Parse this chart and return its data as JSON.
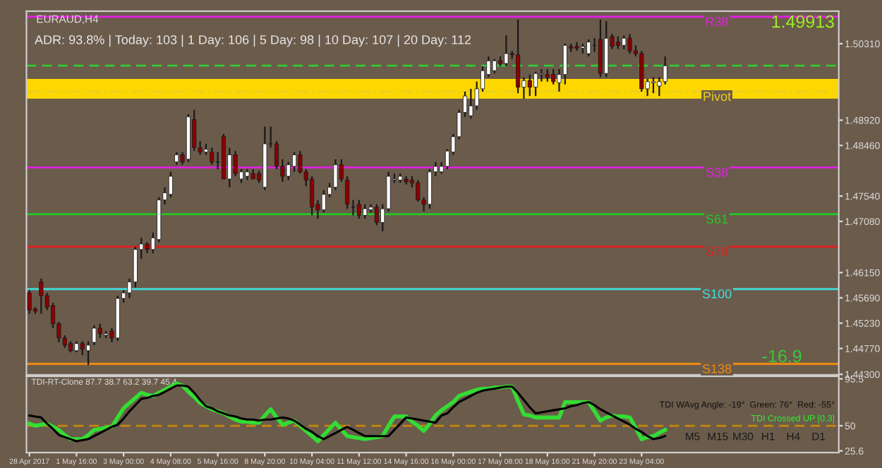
{
  "chart_data": [
    {
      "type": "candlestick",
      "title": "EURAUD,H4",
      "categories": [
        null,
        null,
        null,
        null,
        null,
        null,
        null,
        null,
        null,
        null,
        null,
        null,
        null,
        null,
        null,
        null,
        null,
        null,
        null,
        null,
        null,
        null,
        null,
        null,
        null,
        null,
        null,
        null,
        null,
        null,
        null,
        null,
        null,
        null,
        null,
        null,
        null,
        null,
        null,
        null,
        null,
        null,
        null,
        null,
        null,
        null,
        null,
        null,
        null,
        null,
        null,
        null,
        null,
        null,
        null,
        null,
        null,
        null,
        null,
        null,
        null,
        null,
        null,
        null,
        null,
        null,
        null,
        null,
        null,
        null,
        null,
        null,
        null,
        null,
        null,
        null,
        null,
        null,
        null,
        null,
        null,
        null,
        null,
        null,
        null,
        null,
        null,
        null,
        null,
        null,
        null,
        null,
        null,
        null,
        null,
        null,
        null,
        null,
        null,
        null,
        null,
        null,
        null,
        null,
        null,
        null,
        null,
        null,
        null,
        null,
        null,
        null,
        null,
        null,
        null,
        null,
        null,
        null,
        null,
        null,
        null,
        null,
        null,
        null,
        null,
        null,
        null,
        null,
        null,
        null,
        null,
        null,
        null,
        null,
        null,
        null,
        null,
        null
      ],
      "ohlc": [
        [
          1.4578,
          1.4583,
          1.454,
          1.4547
        ],
        [
          1.4549,
          1.4552,
          1.454,
          1.4545
        ],
        [
          1.4598,
          1.4604,
          1.454,
          1.4573
        ],
        [
          1.4573,
          1.4578,
          1.4547,
          1.4552
        ],
        [
          1.4555,
          1.456,
          1.4514,
          1.4522
        ],
        [
          1.4522,
          1.4525,
          1.4488,
          1.4496
        ],
        [
          1.4496,
          1.4501,
          1.4478,
          1.4483
        ],
        [
          1.4486,
          1.449,
          1.447,
          1.4473
        ],
        [
          1.4473,
          1.449,
          1.447,
          1.4486
        ],
        [
          1.4486,
          1.449,
          1.4465,
          1.4476
        ],
        [
          1.4473,
          1.449,
          1.4447,
          1.4483
        ],
        [
          1.4488,
          1.4519,
          1.4483,
          1.4514
        ],
        [
          1.4514,
          1.4522,
          1.4496,
          1.4504
        ],
        [
          1.4501,
          1.4509,
          1.4496,
          1.4504
        ],
        [
          1.4509,
          1.4514,
          1.4488,
          1.4496
        ],
        [
          1.4496,
          1.4573,
          1.4491,
          1.4568
        ],
        [
          1.4568,
          1.4583,
          1.456,
          1.4578
        ],
        [
          1.4578,
          1.4604,
          1.4568,
          1.4598
        ],
        [
          1.4598,
          1.4662,
          1.4588,
          1.4657
        ],
        [
          1.4657,
          1.4678,
          1.464,
          1.4667
        ],
        [
          1.4667,
          1.467,
          1.465,
          1.4657
        ],
        [
          1.4657,
          1.4688,
          1.465,
          1.4678
        ],
        [
          1.4675,
          1.4752,
          1.467,
          1.4747
        ],
        [
          1.4747,
          1.477,
          1.4739,
          1.476
        ],
        [
          1.4757,
          1.4798,
          1.4752,
          1.479
        ],
        [
          1.4816,
          1.4834,
          1.4811,
          1.4829
        ],
        [
          1.4829,
          1.4834,
          1.4811,
          1.4816
        ],
        [
          1.4821,
          1.4903,
          1.4816,
          1.4898
        ],
        [
          1.4893,
          1.4911,
          1.4836,
          1.4842
        ],
        [
          1.4842,
          1.4854,
          1.4829,
          1.4834
        ],
        [
          1.4834,
          1.4849,
          1.4829,
          1.4839
        ],
        [
          1.4834,
          1.4842,
          1.4811,
          1.4816
        ],
        [
          1.4816,
          1.4834,
          1.4803,
          1.4816
        ],
        [
          1.4862,
          1.4867,
          1.4785,
          1.4785
        ],
        [
          1.4785,
          1.4842,
          1.477,
          1.4829
        ],
        [
          1.4829,
          1.4836,
          1.479,
          1.4795
        ],
        [
          1.4785,
          1.4803,
          1.4778,
          1.4798
        ],
        [
          1.479,
          1.4803,
          1.4783,
          1.4798
        ],
        [
          1.4795,
          1.4803,
          1.4785,
          1.4785
        ],
        [
          1.4795,
          1.48,
          1.4778,
          1.4783
        ],
        [
          1.477,
          1.488,
          1.4765,
          1.4849
        ],
        [
          1.4849,
          1.488,
          1.4842,
          1.4849
        ],
        [
          1.4849,
          1.4854,
          1.4803,
          1.4808
        ],
        [
          1.4808,
          1.4821,
          1.478,
          1.479
        ],
        [
          1.479,
          1.4816,
          1.4783,
          1.4811
        ],
        [
          1.4808,
          1.4834,
          1.4798,
          1.4829
        ],
        [
          1.4829,
          1.4836,
          1.4795,
          1.4798
        ],
        [
          1.4798,
          1.4803,
          1.4772,
          1.4783
        ],
        [
          1.4785,
          1.479,
          1.4719,
          1.4734
        ],
        [
          1.4739,
          1.4747,
          1.4713,
          1.4729
        ],
        [
          1.4729,
          1.4765,
          1.4724,
          1.4757
        ],
        [
          1.4757,
          1.4778,
          1.4752,
          1.477
        ],
        [
          1.477,
          1.4821,
          1.4765,
          1.4811
        ],
        [
          1.4811,
          1.4821,
          1.478,
          1.4785
        ],
        [
          1.4783,
          1.479,
          1.4731,
          1.4739
        ],
        [
          1.4734,
          1.4747,
          1.4719,
          1.4734
        ],
        [
          1.4739,
          1.4747,
          1.4713,
          1.4719
        ],
        [
          1.4719,
          1.4739,
          1.4713,
          1.4731
        ],
        [
          1.4729,
          1.4739,
          1.4724,
          1.4734
        ],
        [
          1.4734,
          1.4739,
          1.4701,
          1.4706
        ],
        [
          1.4706,
          1.4739,
          1.469,
          1.4731
        ],
        [
          1.4731,
          1.4798,
          1.4726,
          1.479
        ],
        [
          1.4783,
          1.4795,
          1.4778,
          1.4785
        ],
        [
          1.4783,
          1.4795,
          1.4778,
          1.479
        ],
        [
          1.4785,
          1.479,
          1.4775,
          1.478
        ],
        [
          1.4783,
          1.479,
          1.477,
          1.4778
        ],
        [
          1.4778,
          1.4783,
          1.4744,
          1.4747
        ],
        [
          1.4747,
          1.4752,
          1.4726,
          1.4739
        ],
        [
          1.4739,
          1.4803,
          1.4731,
          1.4798
        ],
        [
          1.4798,
          1.4816,
          1.479,
          1.4808
        ],
        [
          1.4798,
          1.4816,
          1.4795,
          1.4808
        ],
        [
          1.4808,
          1.4839,
          1.4803,
          1.4836
        ],
        [
          1.4834,
          1.4867,
          1.4829,
          1.4862
        ],
        [
          1.4862,
          1.4911,
          1.4857,
          1.4906
        ],
        [
          1.4906,
          1.4944,
          1.4898,
          1.4936
        ],
        [
          1.49,
          1.4949,
          1.4895,
          1.4918
        ],
        [
          1.4918,
          1.4962,
          1.4911,
          1.4949
        ],
        [
          1.4949,
          1.499,
          1.4944,
          1.4982
        ],
        [
          1.4975,
          1.5008,
          1.497,
          1.5
        ],
        [
          1.4982,
          1.5003,
          1.4977,
          1.5
        ],
        [
          1.5,
          1.5008,
          1.499,
          1.4995
        ],
        [
          1.4995,
          1.5046,
          1.499,
          1.5013
        ],
        [
          1.5013,
          1.5018,
          1.5003,
          1.5011
        ],
        [
          1.5011,
          1.5075,
          1.4941,
          1.4952
        ],
        [
          1.4952,
          1.497,
          1.4931,
          1.4964
        ],
        [
          1.4964,
          1.4975,
          1.4936,
          1.4952
        ],
        [
          1.4952,
          1.498,
          1.4936,
          1.4977
        ],
        [
          1.4975,
          1.4985,
          1.4962,
          1.4977
        ],
        [
          1.4975,
          1.4985,
          1.4962,
          1.497
        ],
        [
          1.4975,
          1.4985,
          1.4957,
          1.4962
        ],
        [
          1.496,
          1.4985,
          1.4944,
          1.4975
        ],
        [
          1.4975,
          1.5031,
          1.4957,
          1.5028
        ],
        [
          1.5026,
          1.5031,
          1.5016,
          1.5023
        ],
        [
          1.5026,
          1.5034,
          1.5018,
          1.5023
        ],
        [
          1.5023,
          1.5031,
          1.5013,
          1.5026
        ],
        [
          1.5013,
          1.5039,
          1.5008,
          1.5034
        ],
        [
          1.5028,
          1.5041,
          1.5016,
          1.5028
        ],
        [
          1.5039,
          1.5075,
          1.497,
          1.4977
        ],
        [
          1.4977,
          1.5072,
          1.497,
          1.5041
        ],
        [
          1.5044,
          1.5049,
          1.5021,
          1.5026
        ],
        [
          1.5034,
          1.5044,
          1.5021,
          1.5028
        ],
        [
          1.5028,
          1.5046,
          1.5021,
          1.5041
        ],
        [
          1.5041,
          1.5049,
          1.5013,
          1.5018
        ],
        [
          1.5018,
          1.5028,
          1.5008,
          1.5013
        ],
        [
          1.5013,
          1.5018,
          1.4944,
          1.4949
        ],
        [
          1.4949,
          1.4967,
          1.4936,
          1.4962
        ],
        [
          1.496,
          1.497,
          1.4941,
          1.4962
        ],
        [
          1.4954,
          1.497,
          1.4936,
          1.4962
        ],
        [
          1.4962,
          1.5008,
          1.4957,
          1.4991
        ],
        null,
        null,
        null,
        null,
        null,
        null,
        null,
        null,
        null,
        null,
        null,
        null,
        null,
        null,
        null,
        null,
        null,
        null,
        null,
        null,
        null,
        null,
        null,
        null,
        null,
        null,
        null,
        null,
        null
      ],
      "ylim": [
        1.4429,
        1.509
      ],
      "yticks": [
        {
          "value": 1.443,
          "label": "1.44300"
        },
        {
          "value": 1.4477,
          "label": "1.44770"
        },
        {
          "value": 1.4523,
          "label": "1.45230"
        },
        {
          "value": 1.4569,
          "label": "1.45690"
        },
        {
          "value": 1.4615,
          "label": "1.46150"
        },
        {
          "value": 1.4708,
          "label": "1.47080"
        },
        {
          "value": 1.4754,
          "label": "1.47540"
        },
        {
          "value": 1.4846,
          "label": "1.48460"
        },
        {
          "value": 1.4892,
          "label": "1.48920"
        },
        {
          "value": 1.5031,
          "label": "1.50310"
        }
      ],
      "tick_labels": "y",
      "ref_lines": [
        {
          "axis": "y",
          "value": 1.508,
          "label": "R38",
          "color": "#e020e0",
          "line_style": "solid"
        },
        {
          "axis": "y",
          "value": 1.4991,
          "color": "#33cc33",
          "line_style": "dashed"
        },
        {
          "axis": "y",
          "value": 1.4944,
          "label": "Pivot",
          "color": "#e8d020",
          "line_style": "dashdot"
        },
        {
          "axis": "y",
          "value": 1.4806,
          "label": "S38",
          "color": "#e020e0",
          "line_style": "solid"
        },
        {
          "axis": "y",
          "value": 1.4721,
          "label": "S61",
          "color": "#22cc22",
          "line_style": "solid"
        },
        {
          "axis": "y",
          "value": 1.4662,
          "label": "S78",
          "color": "#dd2020",
          "line_style": "solid"
        },
        {
          "axis": "y",
          "value": 1.4585,
          "label": "S100",
          "color": "#40e0e0",
          "line_style": "solid"
        },
        {
          "axis": "y",
          "value": 1.4449,
          "label": "S138",
          "color": "#f08c10",
          "line_style": "solid"
        }
      ],
      "bands": [
        {
          "axis": "y",
          "from": 1.4931,
          "to": 1.4967,
          "color": "#ffd700"
        }
      ],
      "annotations": [
        "ADR: 93.8% | Today: 103 | 1 Day: 106 | 5 Day: 98 | 10 Day: 107 | 20 Day: 112",
        "1.49913",
        "-16.9"
      ]
    },
    {
      "type": "line",
      "subtitle": "TDI-RT-Clone 87.7 38.7 63.2 39.7 45.4",
      "categories": [
        "28 Apr 2017",
        null,
        null,
        null,
        null,
        null,
        null,
        null,
        "1 May 16:00",
        null,
        null,
        null,
        null,
        null,
        null,
        null,
        "3 May 00:00",
        null,
        null,
        null,
        null,
        null,
        null,
        null,
        "4 May 08:00",
        null,
        null,
        null,
        null,
        null,
        null,
        null,
        "5 May 16:00",
        null,
        null,
        null,
        null,
        null,
        null,
        null,
        "8 May 20:00",
        null,
        null,
        null,
        null,
        null,
        null,
        null,
        "10 May 04:00",
        null,
        null,
        null,
        null,
        null,
        null,
        null,
        "11 May 12:00",
        null,
        null,
        null,
        null,
        null,
        null,
        null,
        "14 May 16:00",
        null,
        null,
        null,
        null,
        null,
        null,
        null,
        "16 May 00:00",
        null,
        null,
        null,
        null,
        null,
        null,
        null,
        "17 May 08:00",
        null,
        null,
        null,
        null,
        null,
        null,
        null,
        "18 May 16:00",
        null,
        null,
        null,
        null,
        null,
        null,
        null,
        "21 May 20:00",
        null,
        null,
        null,
        null,
        null,
        null,
        null,
        "23 May 04:00",
        null,
        null,
        null,
        null,
        null,
        null,
        null,
        null,
        null,
        null,
        null,
        null,
        null,
        null,
        null,
        null,
        null,
        null,
        null,
        null,
        null,
        null,
        null,
        null,
        null,
        null,
        null,
        null,
        null,
        null,
        null,
        null,
        null
      ],
      "series": [
        {
          "color": "#33dd33",
          "values": [
            52,
            50,
            51,
            52,
            49,
            46,
            41,
            37,
            37,
            37,
            41,
            46,
            47,
            48,
            49,
            58,
            67,
            72,
            77,
            82,
            80,
            79,
            82,
            85,
            88,
            91,
            89,
            83,
            78,
            72,
            69,
            66,
            64,
            62,
            59,
            56,
            54,
            54,
            53,
            53,
            60,
            66,
            58,
            51,
            53,
            55,
            50,
            45,
            40,
            35,
            41,
            47,
            53,
            46,
            40,
            39,
            38,
            37,
            38,
            39,
            40,
            50,
            59,
            59,
            59,
            54,
            50,
            45,
            52,
            60,
            65,
            69,
            73,
            79,
            81,
            83,
            85,
            86,
            86,
            87,
            87,
            88,
            88,
            74,
            61,
            60,
            58,
            58,
            58,
            58,
            58,
            73,
            73,
            73,
            73,
            73,
            64,
            55,
            58,
            60,
            59,
            59,
            58,
            48,
            37,
            39,
            40,
            43,
            46,
            null,
            null,
            null,
            null,
            null,
            null,
            null,
            null,
            null,
            null,
            null,
            null,
            null,
            null,
            null,
            null,
            null,
            null,
            null,
            null,
            null,
            null,
            null,
            null,
            null,
            null,
            null,
            null,
            null
          ]
        },
        {
          "color": "#000000",
          "values": [
            60,
            59,
            58,
            52,
            47,
            41,
            39,
            37,
            35,
            36,
            37,
            40,
            43,
            46,
            49,
            51,
            57,
            64,
            70,
            76,
            77,
            79,
            80,
            83,
            86,
            89,
            89,
            88,
            82,
            75,
            69,
            67,
            64,
            62,
            60,
            59,
            57,
            56,
            56,
            55,
            56,
            56,
            57,
            58,
            57,
            55,
            51,
            47,
            44,
            40,
            37,
            40,
            43,
            46,
            49,
            46,
            43,
            40,
            40,
            40,
            40,
            40,
            46,
            52,
            58,
            57,
            56,
            55,
            54,
            53,
            60,
            62,
            68,
            73,
            76,
            79,
            82,
            84,
            85,
            86,
            87,
            88,
            88,
            82,
            75,
            68,
            62,
            63,
            64,
            65,
            66,
            67,
            69,
            70,
            72,
            73,
            70,
            66,
            63,
            60,
            57,
            54,
            51,
            47,
            44,
            40,
            37,
            38,
            40,
            null,
            null,
            null,
            null,
            null,
            null,
            null,
            null,
            null,
            null,
            null,
            null,
            null,
            null,
            null,
            null,
            null,
            null,
            null,
            null,
            null,
            null,
            null,
            null,
            null,
            null,
            null,
            null,
            null
          ]
        }
      ],
      "ylim": [
        24,
        98
      ],
      "yticks": [
        25.6,
        50,
        95.5
      ],
      "ref_lines": [
        {
          "axis": "y",
          "value": 50,
          "color": "#c8860a",
          "line_style": "dashed"
        }
      ],
      "annotations": [
        "TDI WAvg Angle: -19°  Green: 76°  Red: -55°",
        "TDI Crossed UP [0.3]",
        "M5",
        "M15",
        "M30",
        "H1",
        "H4",
        "D1"
      ]
    }
  ]
}
